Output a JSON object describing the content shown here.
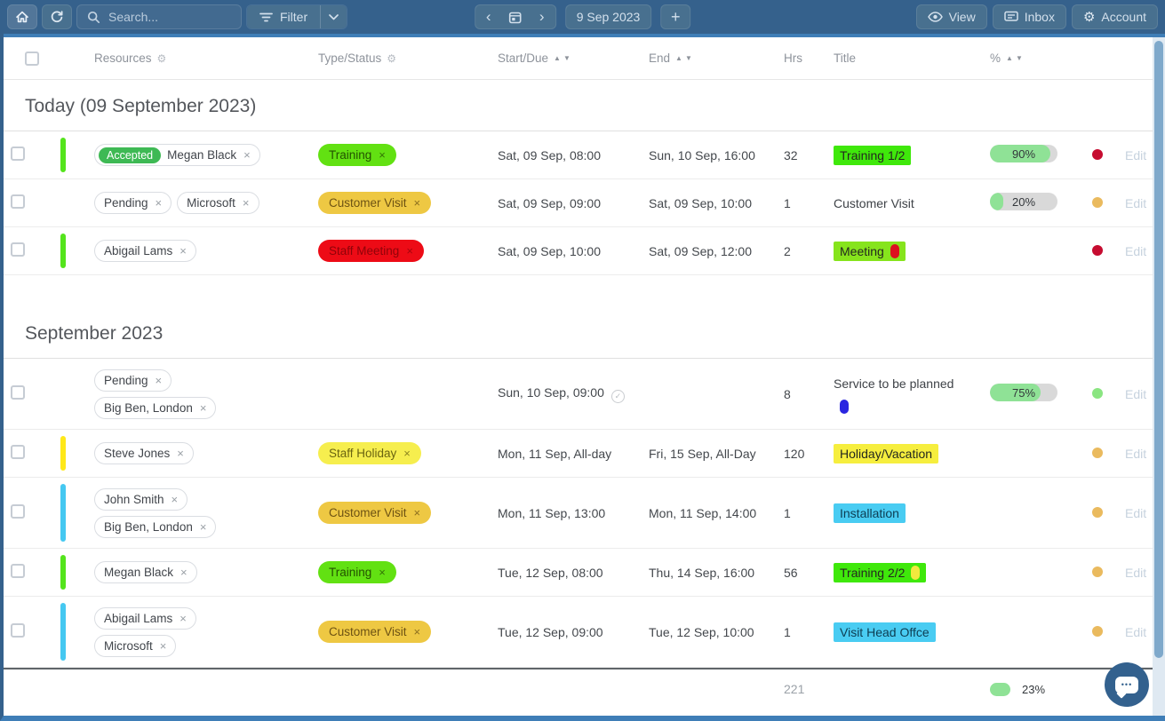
{
  "toolbar": {
    "search_placeholder": "Search...",
    "filter_label": "Filter",
    "date_label": "9 Sep 2023",
    "view_label": "View",
    "inbox_label": "Inbox",
    "account_label": "Account"
  },
  "icons": {
    "remove": "×",
    "check": "✓",
    "prev": "‹",
    "next": "›",
    "add": "+",
    "gear": "⚙",
    "sort_up": "▲",
    "sort_down": "▼",
    "chat_dots": "•••"
  },
  "table": {
    "headers": {
      "resources": "Resources",
      "type_status": "Type/Status",
      "start_due": "Start/Due",
      "end": "End",
      "hrs": "Hrs",
      "title": "Title",
      "percent": "%"
    }
  },
  "colors": {
    "bar_green": "#54e41c",
    "bar_yellow": "#ffe819",
    "bar_blue": "#45c8f1",
    "dot_red": "#c60c30",
    "dot_amber": "#eaba5e",
    "dot_green": "#8ae581",
    "accent_toolbar": "#35618c",
    "accent_frame": "#3f7eb7"
  },
  "sections": [
    {
      "title": "Today (09 September 2023)",
      "rows": [
        {
          "bar": "#54e41c",
          "resources": [
            {
              "badge": "Accepted",
              "name": "Megan Black"
            }
          ],
          "type": {
            "label": "Training",
            "bg": "#62e112",
            "color": "#235200"
          },
          "start": "Sat, 09 Sep, 08:00",
          "end": "Sun, 10 Sep, 16:00",
          "hrs": "32",
          "title": {
            "text": "Training 1/2",
            "bg": "#3fe80b"
          },
          "progress": {
            "label": "90%",
            "value": 90
          },
          "dot": "#c60c30",
          "edit": "Edit"
        },
        {
          "bar": null,
          "resources": [
            {
              "name": "Pending"
            },
            {
              "name": "Microsoft"
            }
          ],
          "type": {
            "label": "Customer Visit",
            "bg": "#eec843",
            "color": "#6d5213"
          },
          "start": "Sat, 09 Sep, 09:00",
          "end": "Sat, 09 Sep, 10:00",
          "hrs": "1",
          "title": {
            "text": "Customer Visit"
          },
          "progress": {
            "label": "20%",
            "value": 20
          },
          "dot": "#eaba5e",
          "edit": "Edit"
        },
        {
          "bar": "#54e41c",
          "resources": [
            {
              "name": "Abigail Lams"
            }
          ],
          "type": {
            "label": "Staff Meeting",
            "bg": "#ed0b16",
            "color": "#8f0309"
          },
          "start": "Sat, 09 Sep, 10:00",
          "end": "Sat, 09 Sep, 12:00",
          "hrs": "2",
          "title": {
            "text": "Meeting",
            "bg": "#86e41c",
            "marker": "#dc0f1f"
          },
          "progress": null,
          "dot": "#c60c30",
          "edit": "Edit"
        }
      ]
    },
    {
      "title": "September 2023",
      "rows": [
        {
          "bar": null,
          "stack": true,
          "resources": [
            {
              "name": "Pending"
            },
            {
              "name": "Big Ben, London"
            }
          ],
          "type": null,
          "start": "Sun, 10 Sep, 09:00",
          "start_icon": true,
          "end": "",
          "hrs": "8",
          "title": {
            "text": "Service to be planned",
            "plain": true,
            "marker_below": "#2a25e0"
          },
          "progress": {
            "label": "75%",
            "value": 75
          },
          "dot": "#8ae581",
          "edit": "Edit"
        },
        {
          "bar": "#ffe819",
          "resources": [
            {
              "name": "Steve Jones"
            }
          ],
          "type": {
            "label": "Staff Holiday",
            "bg": "#f6ee4e",
            "color": "#6a6410"
          },
          "start": "Mon, 11 Sep, All-day",
          "end": "Fri, 15 Sep, All-Day",
          "hrs": "120",
          "title": {
            "text": "Holiday/Vacation",
            "bg": "#f6ee3e"
          },
          "progress": null,
          "dot": "#eaba5e",
          "edit": "Edit"
        },
        {
          "bar": "#45c8f1",
          "stack": true,
          "resources": [
            {
              "name": "John Smith"
            },
            {
              "name": "Big Ben, London"
            }
          ],
          "type": {
            "label": "Customer Visit",
            "bg": "#eec843",
            "color": "#6d5213"
          },
          "start": "Mon, 11 Sep, 13:00",
          "end": "Mon, 11 Sep, 14:00",
          "hrs": "1",
          "title": {
            "text": "Installation",
            "bg": "#49ccf2",
            "fg": "#0d3d52"
          },
          "progress": null,
          "dot": "#eaba5e",
          "edit": "Edit"
        },
        {
          "bar": "#54e41c",
          "resources": [
            {
              "name": "Megan Black"
            }
          ],
          "type": {
            "label": "Training",
            "bg": "#62e112",
            "color": "#235200"
          },
          "start": "Tue, 12 Sep, 08:00",
          "end": "Thu, 14 Sep, 16:00",
          "hrs": "56",
          "title": {
            "text": "Training 2/2",
            "bg": "#3fe80b",
            "marker": "#f2e93e"
          },
          "progress": null,
          "dot": "#eaba5e",
          "edit": "Edit"
        },
        {
          "bar": "#45c8f1",
          "stack": true,
          "resources": [
            {
              "name": "Abigail Lams"
            },
            {
              "name": "Microsoft"
            }
          ],
          "type": {
            "label": "Customer Visit",
            "bg": "#eec843",
            "color": "#6d5213"
          },
          "start": "Tue, 12 Sep, 09:00",
          "end": "Tue, 12 Sep, 10:00",
          "hrs": "1",
          "title": {
            "text": "Visit Head Offce",
            "bg": "#49ccf2",
            "fg": "#0d3d52"
          },
          "progress": null,
          "dot": "#eaba5e",
          "edit": "Edit"
        }
      ]
    }
  ],
  "footer": {
    "total_hrs": "221",
    "progress": {
      "label": "23%",
      "value": 23
    }
  }
}
